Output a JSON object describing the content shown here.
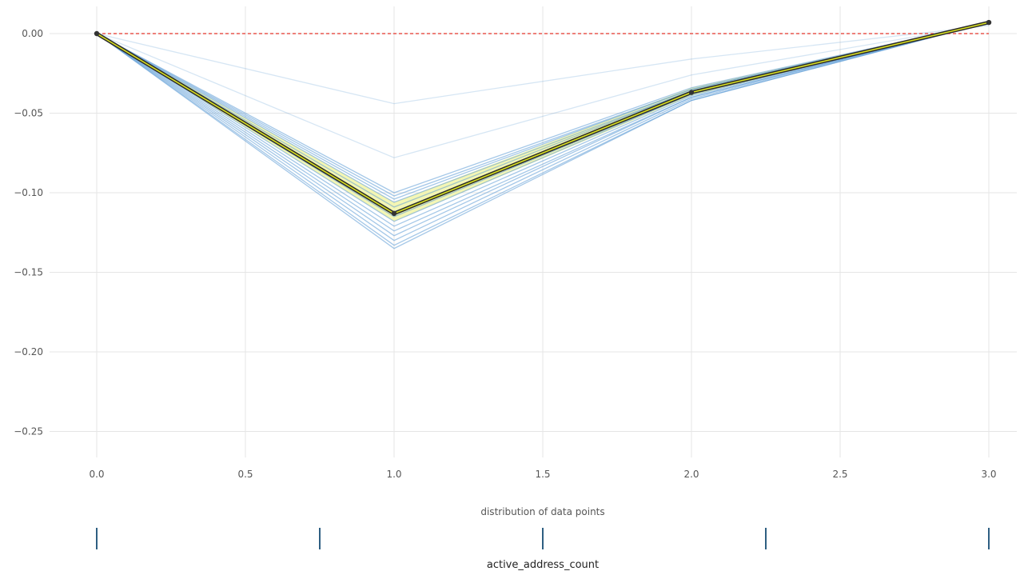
{
  "chart_data": {
    "type": "line",
    "title": "",
    "xlabel": "active_address_count",
    "ylabel": "",
    "distribution_label": "distribution of data points",
    "xlim": [
      0,
      3
    ],
    "ylim": [
      -0.27,
      0.015
    ],
    "x_ticks": [
      0.0,
      0.5,
      1.0,
      1.5,
      2.0,
      2.5,
      3.0
    ],
    "x_tick_labels": [
      "0.0",
      "0.5",
      "1.0",
      "1.5",
      "2.0",
      "2.5",
      "3.0"
    ],
    "y_ticks": [
      0.0,
      -0.05,
      -0.1,
      -0.15,
      -0.2,
      -0.25
    ],
    "y_tick_labels": [
      "0.00",
      "−0.05",
      "−0.10",
      "−0.15",
      "−0.20",
      "−0.25"
    ],
    "grid": true,
    "reference_line": {
      "y": 0,
      "color": "#e8574f"
    },
    "x": [
      0,
      1,
      2,
      3
    ],
    "individual_lines": [
      [
        0,
        -0.044,
        -0.016,
        0.005
      ],
      [
        0,
        -0.078,
        -0.026,
        0.006
      ],
      [
        0,
        -0.1,
        -0.034,
        0.007
      ],
      [
        0,
        -0.102,
        -0.035,
        0.007
      ],
      [
        0,
        -0.104,
        -0.035,
        0.007
      ],
      [
        0,
        -0.106,
        -0.036,
        0.007
      ],
      [
        0,
        -0.109,
        -0.036,
        0.007
      ],
      [
        0,
        -0.112,
        -0.037,
        0.007
      ],
      [
        0,
        -0.115,
        -0.038,
        0.007
      ],
      [
        0,
        -0.118,
        -0.038,
        0.007
      ],
      [
        0,
        -0.121,
        -0.039,
        0.007
      ],
      [
        0,
        -0.124,
        -0.04,
        0.007
      ],
      [
        0,
        -0.127,
        -0.04,
        0.007
      ],
      [
        0,
        -0.13,
        -0.041,
        0.007
      ],
      [
        0,
        -0.133,
        -0.042,
        0.007
      ],
      [
        0,
        -0.135,
        -0.042,
        0.007
      ]
    ],
    "band": {
      "upper": [
        0,
        -0.106,
        -0.034,
        0.007
      ],
      "lower": [
        0,
        -0.118,
        -0.039,
        0.007
      ],
      "color": "#f2f5a8"
    },
    "average": [
      0,
      -0.113,
      -0.037,
      0.007
    ],
    "colors": {
      "individual": "#5b9bd5",
      "average_outer": "#2b2b2b",
      "average_inner": "#d9e021",
      "marker": "#333333",
      "grid": "#e5e5e5",
      "rug": "#2e5f82"
    },
    "rug": [
      0.0,
      0.75,
      1.5,
      2.25,
      3.0
    ]
  }
}
